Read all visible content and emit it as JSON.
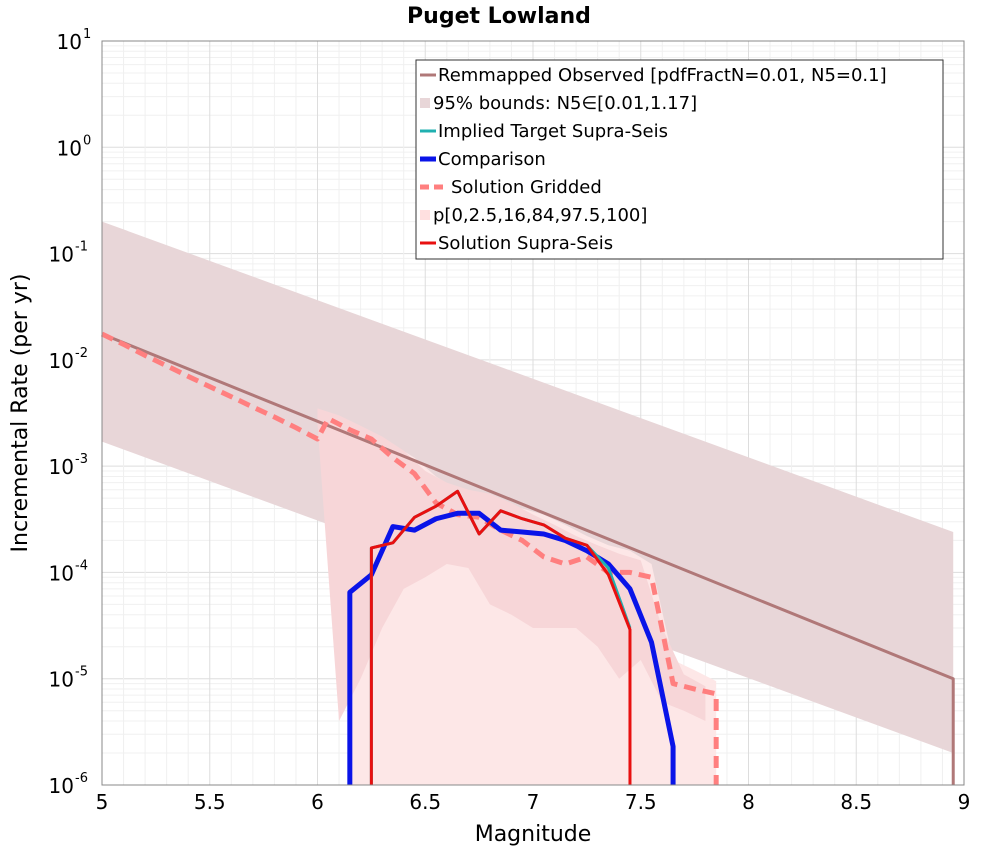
{
  "chart_data": {
    "type": "line",
    "title": "Puget Lowland",
    "xlabel": "Magnitude",
    "ylabel": "Incremental Rate (per yr)",
    "xlim": [
      5,
      9
    ],
    "ylim_log10": [
      -6,
      1
    ],
    "yscale": "log",
    "grid": true,
    "x_ticks": [
      {
        "value": 5,
        "label": "5"
      },
      {
        "value": 5.5,
        "label": "5.5"
      },
      {
        "value": 6,
        "label": "6"
      },
      {
        "value": 6.5,
        "label": "6.5"
      },
      {
        "value": 7,
        "label": "7"
      },
      {
        "value": 7.5,
        "label": "7.5"
      },
      {
        "value": 8,
        "label": "8"
      },
      {
        "value": 8.5,
        "label": "8.5"
      },
      {
        "value": 9,
        "label": "9"
      }
    ],
    "y_ticks": [
      {
        "exp": 1,
        "base": "10",
        "sup": "1"
      },
      {
        "exp": 0,
        "base": "10",
        "sup": "0"
      },
      {
        "exp": -1,
        "base": "10",
        "sup": "-1"
      },
      {
        "exp": -2,
        "base": "10",
        "sup": "-2"
      },
      {
        "exp": -3,
        "base": "10",
        "sup": "-3"
      },
      {
        "exp": -4,
        "base": "10",
        "sup": "-4"
      },
      {
        "exp": -5,
        "base": "10",
        "sup": "-5"
      },
      {
        "exp": -6,
        "base": "10",
        "sup": "-6"
      }
    ],
    "legend_position": "top-right",
    "legend": [
      {
        "label": "Remmapped Observed [pdfFractN=0.01, N5=0.1]",
        "color": "#b07878",
        "style": "line"
      },
      {
        "label": "95% bounds: N5∈[0.01,1.17]",
        "color": "#e8d6d8",
        "style": "band"
      },
      {
        "label": "Implied Target Supra-Seis",
        "color": "#20b0b0",
        "style": "line"
      },
      {
        "label": "Comparison",
        "color": "#0a14e8",
        "style": "thick-line"
      },
      {
        "label": "Solution Gridded",
        "color": "#ff7f7f",
        "style": "dashed"
      },
      {
        "label": "p[0,2.5,16,84,97.5,100]",
        "color": "#ffe0e0",
        "style": "band"
      },
      {
        "label": "Solution Supra-Seis",
        "color": "#e81010",
        "style": "line"
      }
    ],
    "series": [
      {
        "name": "95% bounds: N5∈[0.01,1.17]",
        "kind": "band",
        "color": "#e8d6d8",
        "x": [
          5.0,
          8.95
        ],
        "upper": [
          0.2,
          0.00024
        ],
        "lower": [
          0.0017,
          2e-06
        ]
      },
      {
        "name": "p[0,2.5,16,84,97.5,100] outer",
        "kind": "band",
        "color": "#fde7e7",
        "x": [
          6.15,
          6.25,
          6.35,
          6.45,
          6.55,
          6.65,
          6.75,
          6.85,
          6.95,
          7.05,
          7.15,
          7.25,
          7.35,
          7.45,
          7.55,
          7.65,
          7.75,
          7.85
        ],
        "upper": [
          0.0025,
          0.002,
          0.0016,
          0.0012,
          0.0008,
          0.0006,
          0.0005,
          0.00045,
          0.0004,
          0.00035,
          0.00028,
          0.00022,
          0.00018,
          0.00016,
          0.00012,
          1.5e-05,
          1.2e-05,
          9.5e-06
        ],
        "lower": [
          1e-06,
          1e-06,
          1e-06,
          1e-06,
          1e-06,
          1e-06,
          1e-06,
          1e-06,
          1e-06,
          1e-06,
          1e-06,
          1e-06,
          1e-06,
          1e-06,
          1e-06,
          1e-06,
          1e-06,
          1e-06
        ]
      },
      {
        "name": "p[0,2.5,16,84,97.5,100] inner",
        "kind": "band",
        "color": "#f7d6d8",
        "x": [
          6.0,
          6.1,
          6.2,
          6.3,
          6.4,
          6.5,
          6.6,
          6.7,
          6.8,
          6.9,
          7.0,
          7.1,
          7.2,
          7.3,
          7.4,
          7.5,
          7.6,
          7.7,
          7.8
        ],
        "upper": [
          0.0035,
          0.003,
          0.0024,
          0.0019,
          0.0014,
          0.0009,
          0.0007,
          0.0006,
          0.00055,
          0.00045,
          0.00035,
          0.00028,
          0.00022,
          0.00018,
          0.00015,
          0.00013,
          3e-05,
          1.1e-05,
          8.5e-06
        ],
        "lower": [
          0.0025,
          4e-06,
          1e-05,
          3e-05,
          7e-05,
          9e-05,
          0.00012,
          0.00011,
          5e-05,
          4e-05,
          3e-05,
          3e-05,
          3e-05,
          2e-05,
          1e-05,
          1.5e-05,
          6e-06,
          5e-06,
          4e-06
        ]
      },
      {
        "name": "Remmapped Observed [pdfFractN=0.01, N5=0.1]",
        "kind": "line",
        "color": "#b07878",
        "width": 3,
        "x": [
          5.0,
          8.95,
          8.95
        ],
        "y": [
          0.0175,
          1e-05,
          1e-06
        ]
      },
      {
        "name": "Solution Gridded",
        "kind": "dashed",
        "color": "#ff7f7f",
        "width": 5,
        "x": [
          5.0,
          5.1,
          5.2,
          5.3,
          5.4,
          5.5,
          5.6,
          5.7,
          5.8,
          5.9,
          6.0,
          6.05,
          6.15,
          6.25,
          6.35,
          6.45,
          6.55,
          6.65,
          6.75,
          6.85,
          6.95,
          7.05,
          7.15,
          7.25,
          7.35,
          7.45,
          7.55,
          7.65,
          7.75,
          7.85,
          7.85
        ],
        "y": [
          0.0175,
          0.014,
          0.011,
          0.0088,
          0.007,
          0.0056,
          0.0045,
          0.0036,
          0.0029,
          0.0023,
          0.0018,
          0.0028,
          0.0022,
          0.0018,
          0.0012,
          0.00085,
          0.00045,
          0.00035,
          0.00033,
          0.00025,
          0.0002,
          0.00014,
          0.00012,
          0.00014,
          0.0001,
          0.0001,
          9e-05,
          9e-06,
          8e-06,
          7.2e-06,
          1e-06
        ]
      },
      {
        "name": "Comparison",
        "kind": "line",
        "color": "#0a14e8",
        "width": 5,
        "x": [
          6.15,
          6.15,
          6.25,
          6.35,
          6.45,
          6.55,
          6.65,
          6.75,
          6.85,
          6.95,
          7.05,
          7.15,
          7.25,
          7.35,
          7.45,
          7.55,
          7.65,
          7.65
        ],
        "y": [
          1e-06,
          6.5e-05,
          9.5e-05,
          0.00027,
          0.00025,
          0.00032,
          0.00036,
          0.00036,
          0.00025,
          0.00024,
          0.00023,
          0.0002,
          0.00016,
          0.00012,
          7e-05,
          2.2e-05,
          2.3e-06,
          1e-06
        ]
      },
      {
        "name": "Implied Target Supra-Seis",
        "kind": "line",
        "color": "#20b0b0",
        "width": 3,
        "x": [
          6.25,
          6.25,
          6.35,
          6.45,
          6.55,
          6.65,
          6.75,
          6.85,
          6.95,
          7.05,
          7.15,
          7.25,
          7.35,
          7.45
        ],
        "y": [
          1e-06,
          0.00017,
          0.00019,
          0.00033,
          0.00042,
          0.00058,
          0.00023,
          0.00038,
          0.00032,
          0.00028,
          0.00021,
          0.00018,
          0.00011,
          3e-05
        ]
      },
      {
        "name": "Solution Supra-Seis",
        "kind": "line",
        "color": "#e81010",
        "width": 3,
        "x": [
          6.25,
          6.25,
          6.35,
          6.45,
          6.55,
          6.65,
          6.75,
          6.85,
          6.95,
          7.05,
          7.15,
          7.25,
          7.35,
          7.45,
          7.45
        ],
        "y": [
          1e-06,
          0.00017,
          0.00019,
          0.00033,
          0.00042,
          0.00058,
          0.00023,
          0.00038,
          0.00032,
          0.00028,
          0.00021,
          0.00018,
          9.5e-05,
          2.9e-05,
          1e-06
        ]
      }
    ]
  }
}
